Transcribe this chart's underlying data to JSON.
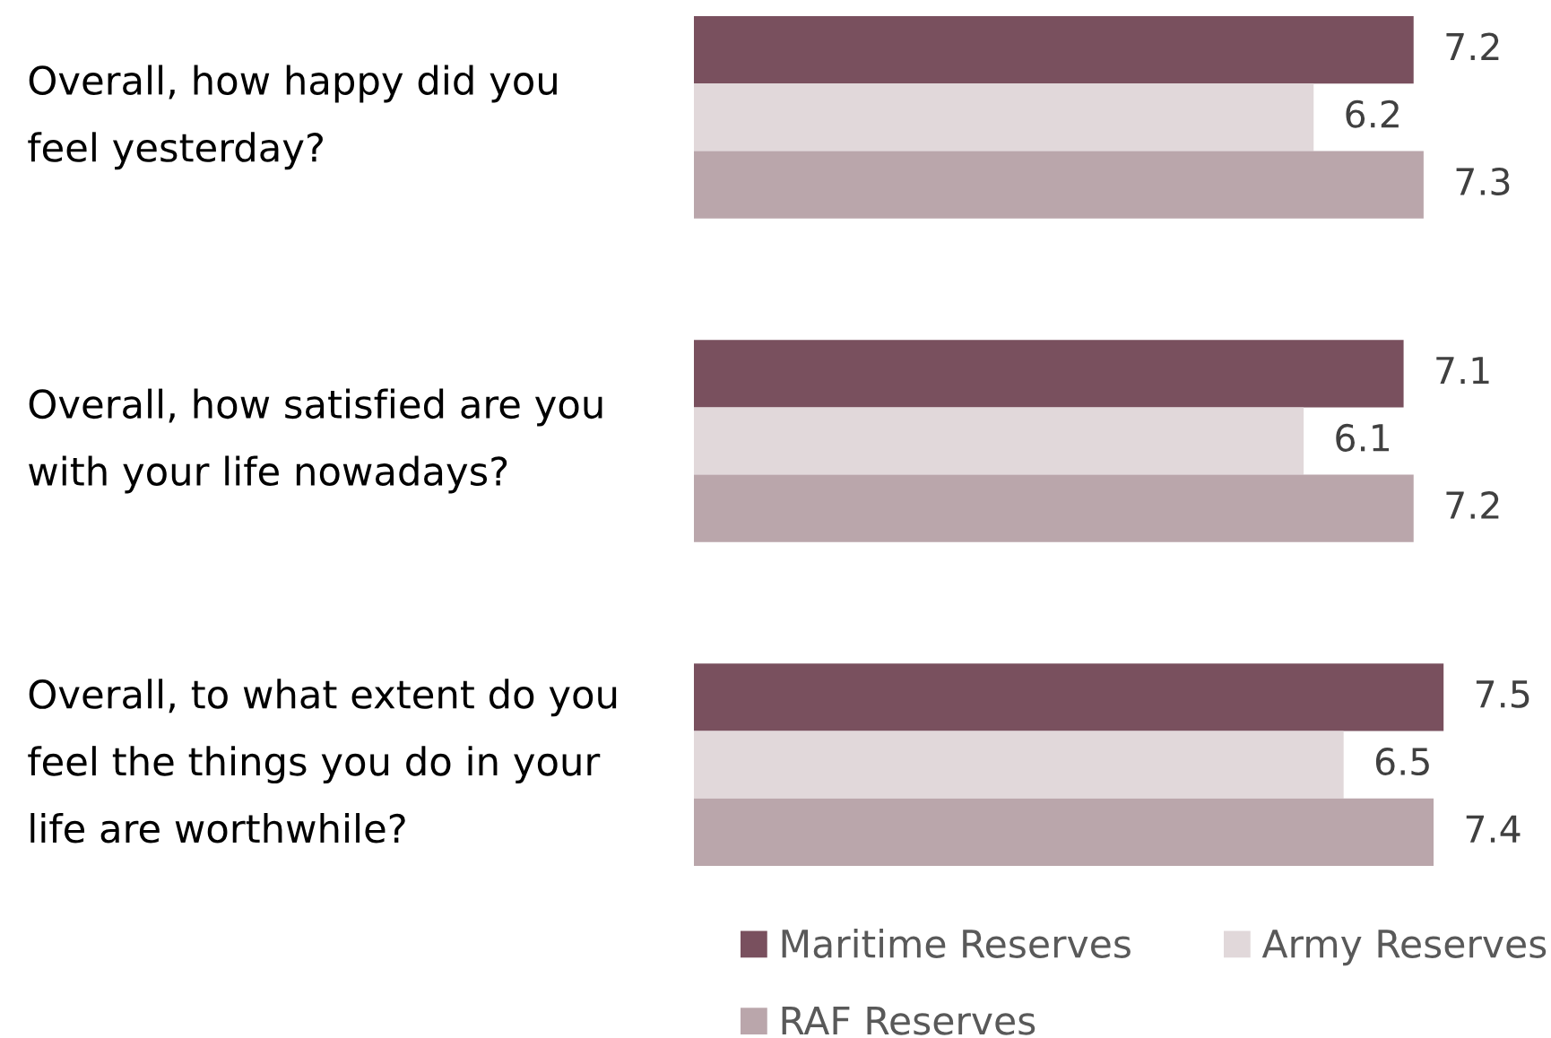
{
  "chart_data": {
    "type": "bar",
    "orientation": "horizontal",
    "categories": [
      "Overall, how happy did you\nfeel yesterday?",
      "Overall, how satisfied are you\nwith your life nowadays?",
      "Overall, to what extent do you\nfeel the things you do in your\nlife are worthwhile?"
    ],
    "series": [
      {
        "name": "Maritime Reserves",
        "color": "#79505e",
        "values": [
          7.2,
          7.1,
          7.5
        ]
      },
      {
        "name": "Army Reserves",
        "color": "#e1d8da",
        "values": [
          6.2,
          6.1,
          6.5
        ]
      },
      {
        "name": "RAF Reserves",
        "color": "#baa6ab",
        "values": [
          7.3,
          7.2,
          7.4
        ]
      }
    ],
    "data_labels": true,
    "legend": "bottom",
    "tick_labels": "y"
  }
}
